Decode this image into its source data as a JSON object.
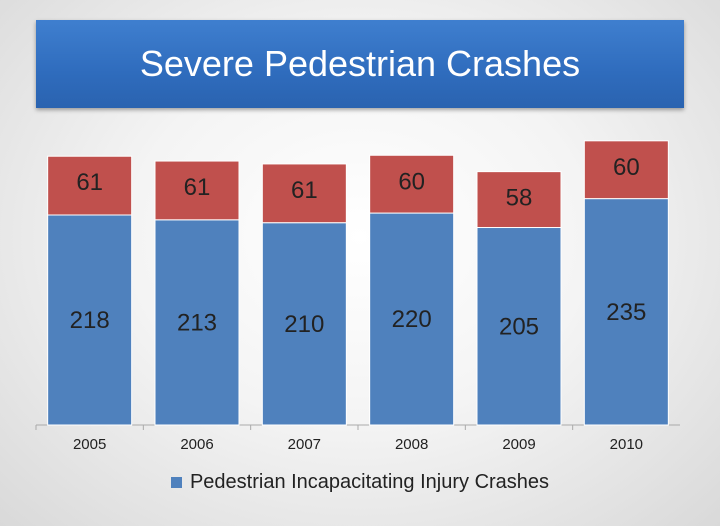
{
  "colors": {
    "title_bg": "#2f6cbd",
    "title_text": "#ffffff",
    "bottom_series": "#4f81bd",
    "top_series": "#c0504d",
    "axis": "#aaaaaa"
  },
  "chart_data": {
    "type": "bar",
    "stacked": true,
    "title": "Severe Pedestrian Crashes",
    "categories": [
      "2005",
      "2006",
      "2007",
      "2008",
      "2009",
      "2010"
    ],
    "series": [
      {
        "name": "Pedestrian Incapacitating Injury Crashes",
        "color": "#4f81bd",
        "values": [
          218,
          213,
          210,
          220,
          205,
          235
        ]
      },
      {
        "color": "#c0504d",
        "values": [
          61,
          61,
          61,
          60,
          58,
          60
        ]
      }
    ],
    "legend": {
      "position": "bottom",
      "entries": [
        "Pedestrian Incapacitating Injury Crashes"
      ]
    },
    "grid": false,
    "ylim": [
      0,
      300
    ]
  }
}
